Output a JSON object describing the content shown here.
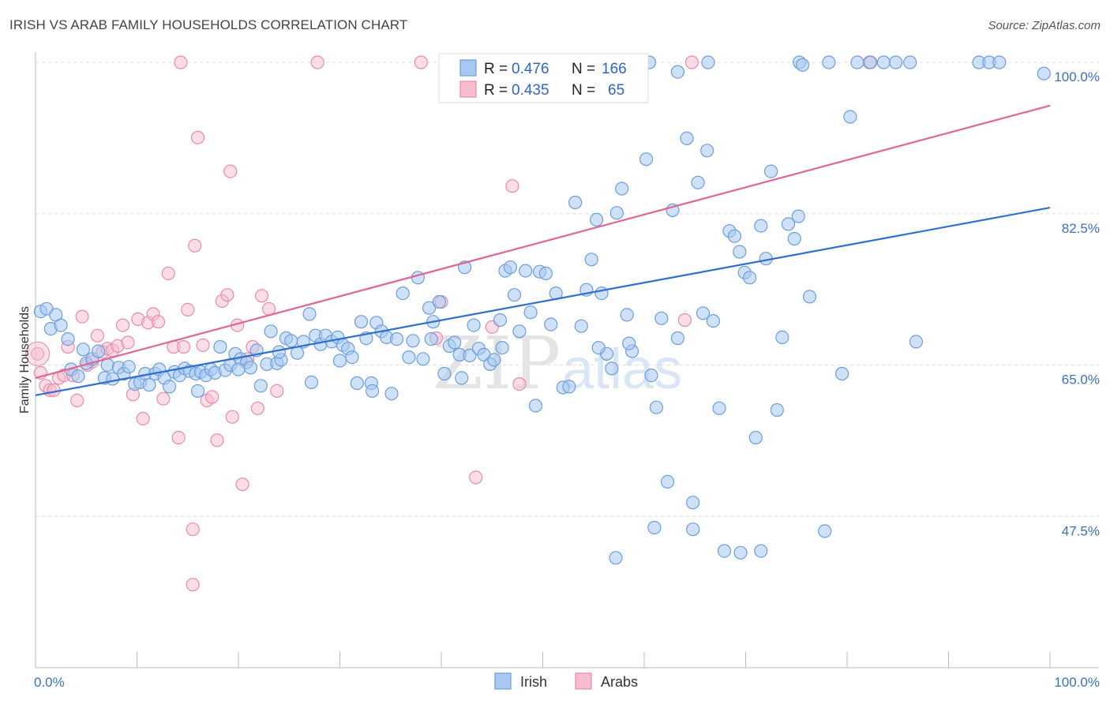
{
  "header": {
    "title": "IRISH VS ARAB FAMILY HOUSEHOLDS CORRELATION CHART",
    "source": "Source: ZipAtlas.com"
  },
  "watermark": {
    "text_zip": "ZIP",
    "text_atlas": "atlas"
  },
  "chart_data": {
    "type": "scatter",
    "title": "IRISH VS ARAB FAMILY HOUSEHOLDS CORRELATION CHART",
    "xlabel": "",
    "ylabel": "Family Households",
    "xlim": [
      0,
      100
    ],
    "ylim": [
      30,
      100
    ],
    "y_ticks": [
      {
        "value": 100,
        "label": "100.0%"
      },
      {
        "value": 82.5,
        "label": "82.5%"
      },
      {
        "value": 65,
        "label": "65.0%"
      },
      {
        "value": 47.5,
        "label": "47.5%"
      }
    ],
    "x_tick_labels": {
      "left": "0.0%",
      "right": "100.0%"
    },
    "grid": true,
    "legend_top": [
      {
        "series": "Irish",
        "r_label": "R =",
        "r_value": "0.476",
        "n_label": "N =",
        "n_value": "166"
      },
      {
        "series": "Arabs",
        "r_label": "R =",
        "r_value": "0.435",
        "n_label": "N =",
        "n_value": "65"
      }
    ],
    "legend_bottom": [
      "Irish",
      "Arabs"
    ],
    "colors": {
      "irish_fill": "#a8c8f0",
      "irish_stroke": "#6b9de0",
      "irish_line": "#2f6fd1",
      "arabs_fill": "#f6bcd0",
      "arabs_stroke": "#ea8aab",
      "arabs_line": "#e06592",
      "tick_text": "#3a6fc4"
    },
    "series": [
      {
        "name": "Irish",
        "trend": {
          "x": [
            0,
            100
          ],
          "y": [
            61.5,
            83.2
          ]
        },
        "points": [
          [
            0.5,
            71.2
          ],
          [
            1.1,
            71.5
          ],
          [
            1.5,
            69.2
          ],
          [
            2.0,
            70.8
          ],
          [
            2.5,
            69.6
          ],
          [
            3.2,
            68.0
          ],
          [
            3.5,
            64.5
          ],
          [
            4.2,
            63.7
          ],
          [
            4.7,
            66.8
          ],
          [
            5.0,
            65.2
          ],
          [
            5.6,
            65.7
          ],
          [
            6.2,
            66.6
          ],
          [
            6.8,
            63.5
          ],
          [
            7.1,
            65.0
          ],
          [
            7.6,
            63.4
          ],
          [
            8.2,
            64.7
          ],
          [
            8.7,
            64.0
          ],
          [
            9.2,
            64.8
          ],
          [
            9.8,
            62.8
          ],
          [
            10.3,
            63.0
          ],
          [
            10.8,
            64.0
          ],
          [
            11.2,
            62.7
          ],
          [
            11.8,
            64.0
          ],
          [
            12.2,
            64.5
          ],
          [
            12.7,
            63.5
          ],
          [
            13.2,
            62.5
          ],
          [
            13.7,
            64.2
          ],
          [
            14.2,
            63.8
          ],
          [
            14.7,
            64.6
          ],
          [
            15.2,
            64.3
          ],
          [
            15.8,
            64.0
          ],
          [
            16.3,
            64.2
          ],
          [
            16.8,
            63.8
          ],
          [
            17.3,
            64.5
          ],
          [
            17.7,
            64.1
          ],
          [
            18.2,
            67.1
          ],
          [
            18.7,
            64.4
          ],
          [
            19.2,
            65.0
          ],
          [
            19.7,
            66.3
          ],
          [
            20.2,
            65.7
          ],
          [
            20.8,
            65.3
          ],
          [
            21.2,
            64.7
          ],
          [
            21.8,
            66.7
          ],
          [
            22.2,
            62.6
          ],
          [
            22.8,
            65.1
          ],
          [
            23.2,
            68.9
          ],
          [
            23.8,
            65.2
          ],
          [
            24.2,
            65.6
          ],
          [
            24.7,
            68.1
          ],
          [
            25.2,
            67.8
          ],
          [
            25.8,
            66.4
          ],
          [
            26.4,
            67.7
          ],
          [
            27.0,
            70.9
          ],
          [
            27.6,
            68.4
          ],
          [
            28.1,
            67.4
          ],
          [
            28.6,
            68.4
          ],
          [
            29.2,
            67.7
          ],
          [
            29.8,
            68.2
          ],
          [
            30.3,
            67.3
          ],
          [
            30.8,
            66.9
          ],
          [
            31.2,
            65.9
          ],
          [
            31.7,
            62.9
          ],
          [
            32.1,
            70.0
          ],
          [
            32.6,
            68.1
          ],
          [
            33.1,
            62.9
          ],
          [
            33.6,
            69.9
          ],
          [
            34.1,
            68.9
          ],
          [
            34.6,
            68.2
          ],
          [
            35.1,
            61.7
          ],
          [
            35.6,
            68.0
          ],
          [
            36.2,
            73.3
          ],
          [
            36.8,
            65.9
          ],
          [
            37.2,
            67.8
          ],
          [
            37.7,
            75.1
          ],
          [
            38.2,
            65.7
          ],
          [
            38.8,
            71.6
          ],
          [
            39.2,
            70.0
          ],
          [
            39.8,
            72.3
          ],
          [
            40.3,
            64.0
          ],
          [
            40.8,
            67.2
          ],
          [
            41.3,
            67.6
          ],
          [
            41.8,
            66.2
          ],
          [
            42.3,
            76.3
          ],
          [
            42.8,
            66.1
          ],
          [
            43.2,
            69.6
          ],
          [
            43.7,
            66.9
          ],
          [
            44.2,
            66.2
          ],
          [
            44.8,
            65.1
          ],
          [
            45.2,
            65.6
          ],
          [
            45.8,
            70.2
          ],
          [
            46.3,
            75.9
          ],
          [
            46.8,
            76.3
          ],
          [
            47.2,
            73.1
          ],
          [
            47.7,
            68.9
          ],
          [
            48.3,
            75.9
          ],
          [
            48.8,
            71.1
          ],
          [
            49.3,
            60.3
          ],
          [
            49.7,
            75.8
          ],
          [
            50.3,
            75.6
          ],
          [
            50.8,
            69.7
          ],
          [
            51.3,
            73.3
          ],
          [
            52.0,
            62.4
          ],
          [
            52.6,
            62.5
          ],
          [
            53.2,
            83.8
          ],
          [
            53.8,
            69.5
          ],
          [
            54.3,
            73.7
          ],
          [
            54.8,
            77.2
          ],
          [
            55.3,
            81.8
          ],
          [
            55.8,
            73.3
          ],
          [
            56.3,
            66.3
          ],
          [
            56.8,
            64.6
          ],
          [
            57.3,
            82.6
          ],
          [
            57.8,
            85.4
          ],
          [
            58.3,
            70.8
          ],
          [
            58.8,
            66.6
          ],
          [
            60.2,
            88.8
          ],
          [
            60.7,
            63.8
          ],
          [
            61.2,
            60.1
          ],
          [
            61.7,
            70.4
          ],
          [
            62.3,
            51.5
          ],
          [
            62.8,
            82.9
          ],
          [
            63.3,
            68.1
          ],
          [
            64.2,
            91.2
          ],
          [
            64.8,
            49.1
          ],
          [
            65.3,
            86.1
          ],
          [
            65.8,
            71.0
          ],
          [
            66.2,
            89.8
          ],
          [
            66.8,
            70.1
          ],
          [
            67.4,
            60.0
          ],
          [
            67.9,
            43.5
          ],
          [
            68.4,
            80.5
          ],
          [
            68.9,
            79.9
          ],
          [
            69.4,
            78.1
          ],
          [
            69.9,
            75.7
          ],
          [
            70.4,
            75.1
          ],
          [
            71.0,
            56.6
          ],
          [
            71.5,
            81.1
          ],
          [
            72.0,
            77.3
          ],
          [
            72.5,
            87.4
          ],
          [
            73.1,
            59.8
          ],
          [
            73.6,
            68.2
          ],
          [
            74.2,
            81.3
          ],
          [
            74.8,
            79.6
          ],
          [
            75.2,
            82.2
          ],
          [
            76.3,
            72.9
          ],
          [
            77.8,
            45.8
          ],
          [
            79.5,
            64.0
          ],
          [
            80.3,
            93.7
          ],
          [
            83.6,
            100.0
          ],
          [
            84.8,
            100.0
          ],
          [
            86.2,
            100.0
          ],
          [
            86.8,
            67.7
          ],
          [
            61.0,
            46.2
          ],
          [
            57.2,
            42.7
          ],
          [
            69.5,
            43.3
          ],
          [
            71.5,
            43.5
          ],
          [
            64.8,
            46.0
          ],
          [
            33.2,
            62.0
          ],
          [
            27.2,
            63.0
          ],
          [
            16.0,
            62.0
          ],
          [
            55.5,
            67.0
          ],
          [
            58.5,
            67.5
          ],
          [
            42.0,
            63.5
          ],
          [
            39.0,
            68.0
          ],
          [
            46.0,
            67.0
          ],
          [
            30.0,
            65.5
          ],
          [
            24.0,
            66.5
          ],
          [
            20.0,
            64.5
          ],
          [
            60.5,
            100.0
          ],
          [
            66.3,
            100.0
          ],
          [
            63.3,
            98.9
          ],
          [
            75.3,
            100.0
          ],
          [
            75.6,
            99.7
          ],
          [
            78.2,
            100.0
          ],
          [
            81.0,
            100.0
          ],
          [
            82.3,
            100.0
          ],
          [
            93.0,
            100.0
          ],
          [
            94.0,
            100.0
          ],
          [
            95.0,
            100.0
          ],
          [
            99.4,
            98.7
          ]
        ]
      },
      {
        "name": "Arabs",
        "trend": {
          "x": [
            0,
            100
          ],
          "y": [
            63.5,
            95.0
          ]
        },
        "points": [
          [
            0.2,
            66.3
          ],
          [
            0.5,
            64.1
          ],
          [
            1.0,
            62.6
          ],
          [
            1.4,
            62.1
          ],
          [
            1.8,
            62.1
          ],
          [
            2.3,
            63.5
          ],
          [
            2.8,
            63.8
          ],
          [
            3.2,
            67.1
          ],
          [
            3.7,
            63.8
          ],
          [
            4.1,
            60.9
          ],
          [
            4.6,
            70.6
          ],
          [
            5.1,
            65.0
          ],
          [
            5.6,
            65.4
          ],
          [
            6.1,
            68.4
          ],
          [
            6.6,
            66.5
          ],
          [
            7.1,
            66.9
          ],
          [
            7.6,
            66.7
          ],
          [
            8.1,
            67.2
          ],
          [
            8.6,
            69.6
          ],
          [
            9.1,
            67.6
          ],
          [
            9.6,
            61.6
          ],
          [
            10.1,
            70.3
          ],
          [
            10.6,
            58.8
          ],
          [
            11.1,
            69.9
          ],
          [
            11.6,
            70.9
          ],
          [
            12.1,
            70.0
          ],
          [
            12.6,
            61.1
          ],
          [
            13.1,
            75.6
          ],
          [
            13.6,
            67.1
          ],
          [
            14.1,
            56.6
          ],
          [
            14.6,
            67.1
          ],
          [
            15.0,
            71.4
          ],
          [
            15.5,
            46.0
          ],
          [
            15.5,
            39.6
          ],
          [
            16.0,
            91.3
          ],
          [
            16.5,
            67.3
          ],
          [
            16.9,
            60.9
          ],
          [
            17.4,
            61.3
          ],
          [
            17.9,
            56.3
          ],
          [
            18.4,
            72.4
          ],
          [
            18.9,
            73.1
          ],
          [
            19.4,
            59.0
          ],
          [
            19.9,
            69.6
          ],
          [
            20.4,
            51.2
          ],
          [
            20.9,
            65.7
          ],
          [
            21.4,
            67.1
          ],
          [
            21.9,
            60.0
          ],
          [
            22.3,
            73.0
          ],
          [
            23.0,
            71.5
          ],
          [
            23.8,
            62.0
          ],
          [
            14.3,
            100.0
          ],
          [
            27.8,
            100.0
          ],
          [
            38.0,
            100.0
          ],
          [
            46.1,
            100.0
          ],
          [
            47.0,
            85.7
          ],
          [
            47.7,
            62.8
          ],
          [
            43.4,
            52.0
          ],
          [
            40.0,
            72.3
          ],
          [
            39.5,
            68.1
          ],
          [
            45.0,
            69.4
          ],
          [
            19.2,
            87.4
          ],
          [
            15.7,
            78.8
          ],
          [
            64.7,
            100.0
          ],
          [
            82.2,
            100.0
          ],
          [
            64.0,
            70.2
          ]
        ]
      }
    ]
  }
}
